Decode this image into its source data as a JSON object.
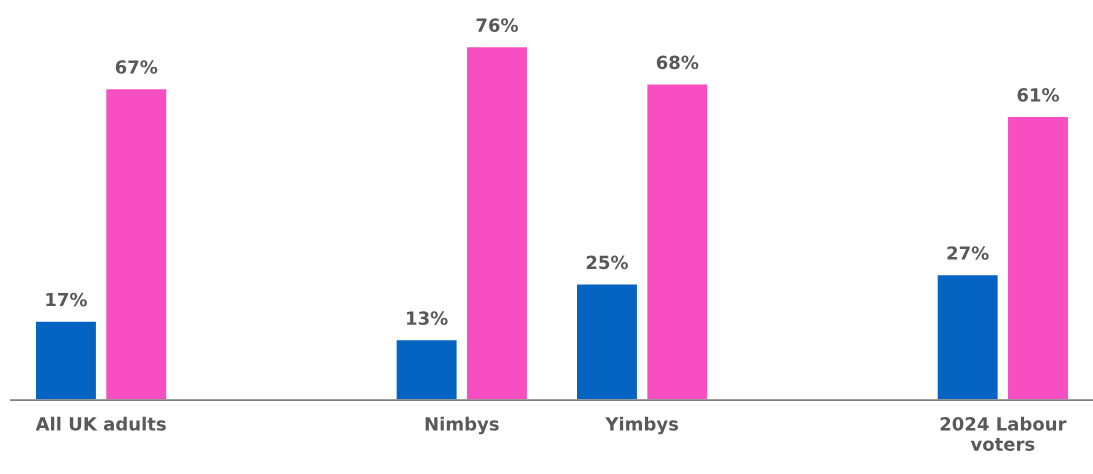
{
  "chart_data": {
    "type": "bar",
    "categories": [
      "All UK adults",
      null,
      "Nimbys",
      "Yimbys",
      null,
      "2024 Labour\nvoters"
    ],
    "series": [
      {
        "color": "#0563c1",
        "values": [
          17,
          null,
          13,
          25,
          null,
          27
        ],
        "value_labels": [
          "17%",
          null,
          "13%",
          "25%",
          null,
          "27%"
        ]
      },
      {
        "color": "#f74fc1",
        "values": [
          67,
          null,
          76,
          68,
          null,
          61
        ],
        "value_labels": [
          "67%",
          null,
          "76%",
          "68%",
          null,
          "61%"
        ]
      }
    ],
    "tick_labels": "x",
    "grid": false,
    "legend": false
  }
}
